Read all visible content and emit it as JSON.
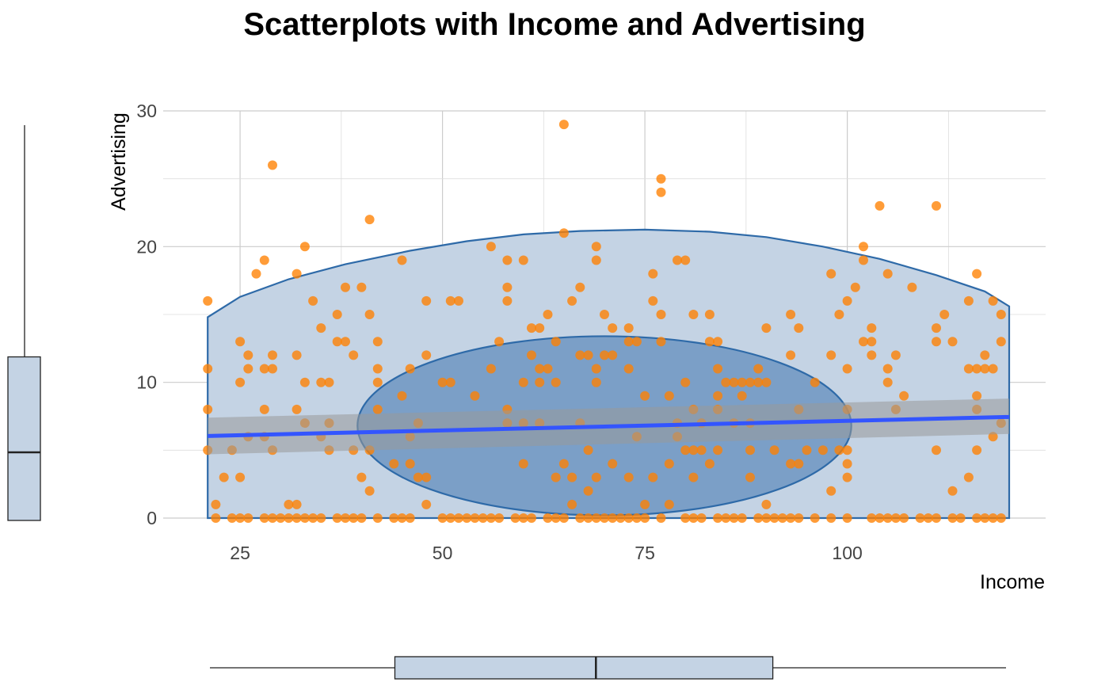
{
  "chart_data": {
    "type": "scatter",
    "title": "Scatterplots with Income and Advertising",
    "xlabel": "Income",
    "ylabel": "Advertising",
    "xlim": [
      15.5,
      124.5
    ],
    "ylim": [
      0,
      30
    ],
    "xticks": [
      25,
      50,
      75,
      100
    ],
    "yticks": [
      0,
      10,
      20,
      30
    ],
    "grid": true,
    "colors": {
      "points": "#ff8000",
      "regression_line": "#3355ff",
      "confidence_band": "#999999",
      "hull_fill": "#c4d3e4",
      "hull_stroke": "#2e6aa8",
      "ellipse_fill": "#6f95c2",
      "ellipse_stroke": "#2e6aa8",
      "boxplot_fill": "#c4d3e4"
    },
    "points": [
      [
        21,
        16
      ],
      [
        21,
        11
      ],
      [
        21,
        8
      ],
      [
        21,
        5
      ],
      [
        22,
        1
      ],
      [
        22,
        0
      ],
      [
        23,
        3
      ],
      [
        24,
        5
      ],
      [
        24,
        0
      ],
      [
        25,
        13
      ],
      [
        25,
        10
      ],
      [
        25,
        3
      ],
      [
        25,
        0
      ],
      [
        26,
        12
      ],
      [
        26,
        11
      ],
      [
        26,
        6
      ],
      [
        26,
        0
      ],
      [
        27,
        18
      ],
      [
        28,
        19
      ],
      [
        28,
        11
      ],
      [
        28,
        8
      ],
      [
        28,
        6
      ],
      [
        28,
        0
      ],
      [
        29,
        26
      ],
      [
        29,
        12
      ],
      [
        29,
        11
      ],
      [
        29,
        5
      ],
      [
        29,
        0
      ],
      [
        30,
        0
      ],
      [
        31,
        1
      ],
      [
        31,
        0
      ],
      [
        32,
        18
      ],
      [
        32,
        12
      ],
      [
        32,
        8
      ],
      [
        32,
        1
      ],
      [
        32,
        0
      ],
      [
        33,
        20
      ],
      [
        33,
        10
      ],
      [
        33,
        7
      ],
      [
        33,
        0
      ],
      [
        34,
        16
      ],
      [
        34,
        0
      ],
      [
        35,
        14
      ],
      [
        35,
        10
      ],
      [
        35,
        6
      ],
      [
        35,
        0
      ],
      [
        36,
        10
      ],
      [
        36,
        7
      ],
      [
        36,
        5
      ],
      [
        37,
        15
      ],
      [
        37,
        13
      ],
      [
        37,
        0
      ],
      [
        38,
        17
      ],
      [
        38,
        13
      ],
      [
        38,
        0
      ],
      [
        39,
        12
      ],
      [
        39,
        5
      ],
      [
        39,
        0
      ],
      [
        40,
        17
      ],
      [
        40,
        3
      ],
      [
        40,
        0
      ],
      [
        41,
        22
      ],
      [
        41,
        15
      ],
      [
        41,
        5
      ],
      [
        41,
        2
      ],
      [
        42,
        13
      ],
      [
        42,
        11
      ],
      [
        42,
        10
      ],
      [
        42,
        8
      ],
      [
        42,
        0
      ],
      [
        44,
        4
      ],
      [
        44,
        0
      ],
      [
        45,
        19
      ],
      [
        45,
        9
      ],
      [
        45,
        0
      ],
      [
        46,
        11
      ],
      [
        46,
        6
      ],
      [
        46,
        4
      ],
      [
        46,
        0
      ],
      [
        47,
        7
      ],
      [
        47,
        3
      ],
      [
        48,
        16
      ],
      [
        48,
        12
      ],
      [
        48,
        3
      ],
      [
        48,
        1
      ],
      [
        50,
        10
      ],
      [
        50,
        0
      ],
      [
        51,
        16
      ],
      [
        51,
        10
      ],
      [
        51,
        0
      ],
      [
        52,
        16
      ],
      [
        52,
        0
      ],
      [
        53,
        0
      ],
      [
        54,
        9
      ],
      [
        54,
        0
      ],
      [
        55,
        0
      ],
      [
        56,
        20
      ],
      [
        56,
        11
      ],
      [
        56,
        0
      ],
      [
        57,
        13
      ],
      [
        57,
        0
      ],
      [
        58,
        19
      ],
      [
        58,
        17
      ],
      [
        58,
        16
      ],
      [
        58,
        8
      ],
      [
        58,
        7
      ],
      [
        59,
        0
      ],
      [
        60,
        19
      ],
      [
        60,
        10
      ],
      [
        60,
        7
      ],
      [
        60,
        4
      ],
      [
        60,
        0
      ],
      [
        61,
        14
      ],
      [
        61,
        12
      ],
      [
        61,
        0
      ],
      [
        62,
        14
      ],
      [
        62,
        11
      ],
      [
        62,
        10
      ],
      [
        62,
        7
      ],
      [
        63,
        15
      ],
      [
        63,
        11
      ],
      [
        63,
        0
      ],
      [
        64,
        13
      ],
      [
        64,
        10
      ],
      [
        64,
        3
      ],
      [
        64,
        0
      ],
      [
        65,
        29
      ],
      [
        65,
        21
      ],
      [
        65,
        4
      ],
      [
        65,
        0
      ],
      [
        66,
        16
      ],
      [
        66,
        3
      ],
      [
        66,
        1
      ],
      [
        67,
        17
      ],
      [
        67,
        12
      ],
      [
        67,
        7
      ],
      [
        67,
        0
      ],
      [
        68,
        12
      ],
      [
        68,
        5
      ],
      [
        68,
        2
      ],
      [
        68,
        0
      ],
      [
        69,
        20
      ],
      [
        69,
        19
      ],
      [
        69,
        11
      ],
      [
        69,
        10
      ],
      [
        69,
        3
      ],
      [
        69,
        0
      ],
      [
        70,
        15
      ],
      [
        70,
        12
      ],
      [
        70,
        0
      ],
      [
        71,
        14
      ],
      [
        71,
        12
      ],
      [
        71,
        4
      ],
      [
        71,
        0
      ],
      [
        72,
        0
      ],
      [
        73,
        14
      ],
      [
        73,
        13
      ],
      [
        73,
        11
      ],
      [
        73,
        3
      ],
      [
        73,
        0
      ],
      [
        74,
        13
      ],
      [
        74,
        6
      ],
      [
        74,
        0
      ],
      [
        75,
        9
      ],
      [
        75,
        1
      ],
      [
        75,
        0
      ],
      [
        76,
        18
      ],
      [
        76,
        16
      ],
      [
        76,
        3
      ],
      [
        77,
        25
      ],
      [
        77,
        24
      ],
      [
        77,
        15
      ],
      [
        77,
        13
      ],
      [
        77,
        0
      ],
      [
        78,
        9
      ],
      [
        78,
        4
      ],
      [
        78,
        1
      ],
      [
        79,
        19
      ],
      [
        79,
        7
      ],
      [
        79,
        6
      ],
      [
        80,
        19
      ],
      [
        80,
        10
      ],
      [
        80,
        5
      ],
      [
        80,
        0
      ],
      [
        81,
        15
      ],
      [
        81,
        8
      ],
      [
        81,
        5
      ],
      [
        81,
        3
      ],
      [
        81,
        0
      ],
      [
        82,
        7
      ],
      [
        82,
        5
      ],
      [
        82,
        0
      ],
      [
        83,
        15
      ],
      [
        83,
        13
      ],
      [
        83,
        4
      ],
      [
        84,
        13
      ],
      [
        84,
        11
      ],
      [
        84,
        9
      ],
      [
        84,
        8
      ],
      [
        84,
        5
      ],
      [
        84,
        0
      ],
      [
        85,
        10
      ],
      [
        85,
        0
      ],
      [
        86,
        10
      ],
      [
        86,
        7
      ],
      [
        86,
        0
      ],
      [
        87,
        10
      ],
      [
        87,
        9
      ],
      [
        87,
        0
      ],
      [
        88,
        10
      ],
      [
        88,
        7
      ],
      [
        88,
        5
      ],
      [
        88,
        3
      ],
      [
        89,
        11
      ],
      [
        89,
        10
      ],
      [
        89,
        0
      ],
      [
        90,
        14
      ],
      [
        90,
        10
      ],
      [
        90,
        1
      ],
      [
        90,
        0
      ],
      [
        91,
        5
      ],
      [
        91,
        0
      ],
      [
        92,
        0
      ],
      [
        93,
        15
      ],
      [
        93,
        12
      ],
      [
        93,
        4
      ],
      [
        93,
        0
      ],
      [
        94,
        14
      ],
      [
        94,
        8
      ],
      [
        94,
        4
      ],
      [
        94,
        0
      ],
      [
        95,
        5
      ],
      [
        96,
        10
      ],
      [
        96,
        0
      ],
      [
        97,
        5
      ],
      [
        98,
        18
      ],
      [
        98,
        12
      ],
      [
        98,
        2
      ],
      [
        98,
        0
      ],
      [
        99,
        15
      ],
      [
        99,
        5
      ],
      [
        100,
        16
      ],
      [
        100,
        11
      ],
      [
        100,
        8
      ],
      [
        100,
        5
      ],
      [
        100,
        4
      ],
      [
        100,
        3
      ],
      [
        100,
        0
      ],
      [
        101,
        17
      ],
      [
        102,
        20
      ],
      [
        102,
        19
      ],
      [
        102,
        13
      ],
      [
        103,
        14
      ],
      [
        103,
        13
      ],
      [
        103,
        12
      ],
      [
        103,
        0
      ],
      [
        104,
        23
      ],
      [
        104,
        0
      ],
      [
        105,
        18
      ],
      [
        105,
        11
      ],
      [
        105,
        10
      ],
      [
        105,
        0
      ],
      [
        106,
        12
      ],
      [
        106,
        8
      ],
      [
        106,
        0
      ],
      [
        107,
        9
      ],
      [
        107,
        0
      ],
      [
        108,
        17
      ],
      [
        109,
        0
      ],
      [
        110,
        0
      ],
      [
        111,
        23
      ],
      [
        111,
        14
      ],
      [
        111,
        13
      ],
      [
        111,
        5
      ],
      [
        111,
        0
      ],
      [
        112,
        15
      ],
      [
        113,
        13
      ],
      [
        113,
        2
      ],
      [
        113,
        0
      ],
      [
        114,
        0
      ],
      [
        115,
        16
      ],
      [
        115,
        11
      ],
      [
        115,
        3
      ],
      [
        116,
        18
      ],
      [
        116,
        11
      ],
      [
        116,
        9
      ],
      [
        116,
        8
      ],
      [
        116,
        5
      ],
      [
        116,
        0
      ],
      [
        117,
        12
      ],
      [
        117,
        11
      ],
      [
        117,
        0
      ],
      [
        118,
        16
      ],
      [
        118,
        11
      ],
      [
        118,
        6
      ],
      [
        118,
        0
      ],
      [
        119,
        15
      ],
      [
        119,
        13
      ],
      [
        119,
        7
      ],
      [
        119,
        0
      ]
    ],
    "regression": {
      "x": [
        21,
        120
      ],
      "y": [
        6.05,
        7.45
      ],
      "ci_lower": [
        4.7,
        6.2
      ],
      "ci_upper": [
        7.4,
        8.8
      ]
    },
    "hull": [
      [
        21,
        0
      ],
      [
        21,
        14.8
      ],
      [
        25,
        16.3
      ],
      [
        31,
        17.6
      ],
      [
        38,
        18.7
      ],
      [
        46,
        19.7
      ],
      [
        53,
        20.4
      ],
      [
        60,
        20.9
      ],
      [
        67,
        21.15
      ],
      [
        75,
        21.25
      ],
      [
        83,
        21.1
      ],
      [
        90,
        20.7
      ],
      [
        97,
        20.0
      ],
      [
        104,
        19.1
      ],
      [
        111,
        17.9
      ],
      [
        117,
        16.7
      ],
      [
        120,
        15.6
      ],
      [
        120,
        0
      ]
    ],
    "ellipse": {
      "cx": 70,
      "cy": 6.8,
      "rx": 30.5,
      "ry": 6.6
    },
    "boxplot_x": {
      "min": 21,
      "q1": 44,
      "median": 69,
      "q3": 91,
      "max": 120
    },
    "boxplot_y": {
      "min": 0,
      "q1": 0,
      "median": 5,
      "q3": 12,
      "max": 29
    }
  }
}
